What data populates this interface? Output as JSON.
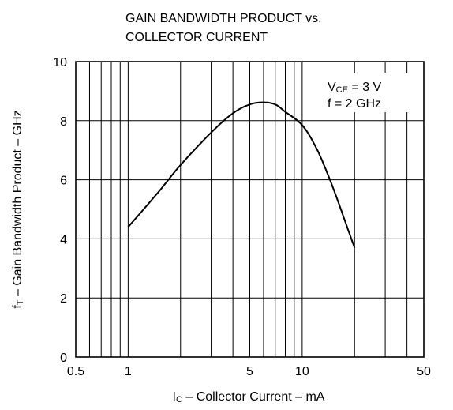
{
  "chart_data": {
    "type": "line",
    "title": [
      "GAIN BANDWIDTH PRODUCT vs.",
      "COLLECTOR CURRENT"
    ],
    "xlabel": {
      "main": "I",
      "sub": "C",
      "rest": " – Collector Current – mA"
    },
    "ylabel": {
      "main": "f",
      "sub": "T",
      "rest": " – Gain Bandwidth Product – GHz"
    },
    "xscale": "log",
    "xlim": [
      0.5,
      50
    ],
    "ylim": [
      0,
      10
    ],
    "grid": true,
    "x_ticks": [
      0.5,
      1,
      5,
      10,
      50
    ],
    "x_tick_labels": [
      "0.5",
      "1",
      "5",
      "10",
      "50"
    ],
    "y_ticks": [
      0,
      2,
      4,
      6,
      8,
      10
    ],
    "y_tick_labels": [
      "0",
      "2",
      "4",
      "6",
      "8",
      "10"
    ],
    "annotation": [
      {
        "main": "V",
        "sub": "CE",
        "rest": " = 3 V"
      },
      {
        "main": "f = 2 GHz",
        "sub": "",
        "rest": ""
      }
    ],
    "series": [
      {
        "x": [
          1,
          1.5,
          2,
          3,
          4,
          5,
          6,
          7,
          8,
          10,
          12,
          14,
          16,
          18,
          20
        ],
        "y": [
          4.4,
          5.6,
          6.5,
          7.6,
          8.25,
          8.55,
          8.62,
          8.55,
          8.3,
          7.85,
          7.1,
          6.2,
          5.3,
          4.45,
          3.7
        ]
      }
    ]
  }
}
